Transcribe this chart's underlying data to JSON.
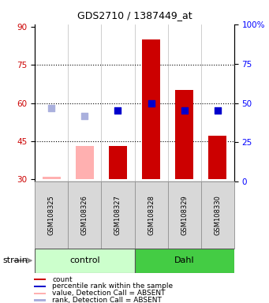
{
  "title": "GDS2710 / 1387449_at",
  "samples": [
    "GSM108325",
    "GSM108326",
    "GSM108327",
    "GSM108328",
    "GSM108329",
    "GSM108330"
  ],
  "bar_values": [
    31,
    43,
    43,
    85,
    65,
    47
  ],
  "bar_absent": [
    true,
    true,
    false,
    false,
    false,
    false
  ],
  "rank_values": [
    58,
    55,
    57,
    60,
    57,
    57
  ],
  "rank_absent": [
    true,
    true,
    false,
    false,
    false,
    false
  ],
  "ylim_left": [
    29,
    91
  ],
  "ylim_right": [
    0,
    100
  ],
  "yticks_left": [
    30,
    45,
    60,
    75,
    90
  ],
  "yticks_right": [
    0,
    25,
    50,
    75,
    100
  ],
  "ytick_labels_right": [
    "0",
    "25",
    "50",
    "75",
    "100%"
  ],
  "hlines": [
    45,
    60,
    75
  ],
  "color_bar_present": "#cc0000",
  "color_bar_absent": "#ffb0b0",
  "color_rank_present": "#0000cc",
  "color_rank_absent": "#aab0dd",
  "control_color": "#ccffcc",
  "dahl_color": "#44cc44",
  "bar_width": 0.55,
  "legend_items": [
    {
      "color": "#cc0000",
      "label": "count"
    },
    {
      "color": "#0000cc",
      "label": "percentile rank within the sample"
    },
    {
      "color": "#ffb0b0",
      "label": "value, Detection Call = ABSENT"
    },
    {
      "color": "#aab0dd",
      "label": "rank, Detection Call = ABSENT"
    }
  ]
}
